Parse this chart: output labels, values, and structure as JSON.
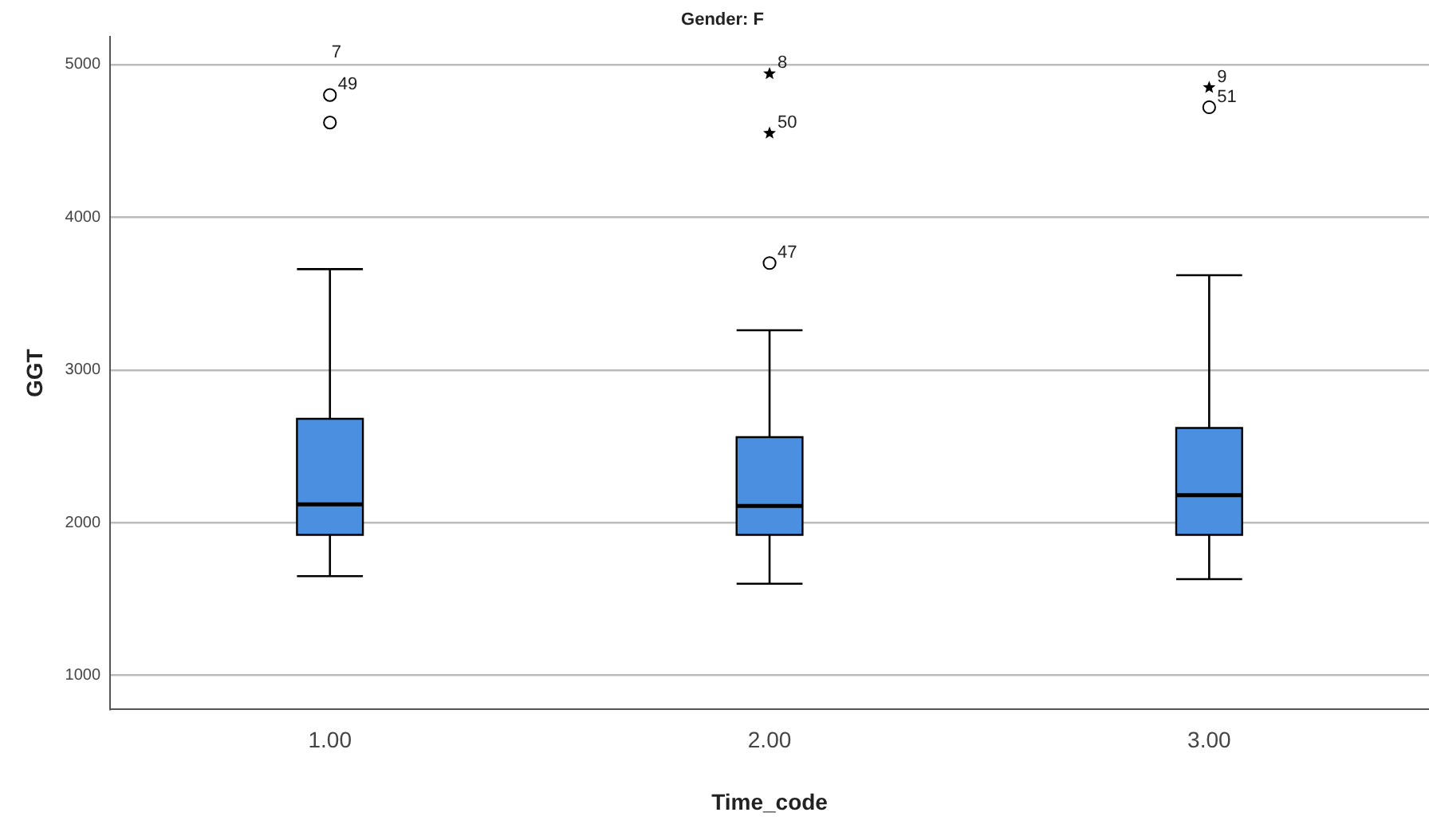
{
  "chart_data": {
    "type": "box",
    "title": "Gender: F",
    "xlabel": "Time_code",
    "ylabel": "GGT",
    "categories": [
      "1.00",
      "2.00",
      "3.00"
    ],
    "color": "#4a8fe0",
    "boxes": [
      {
        "low": 1650,
        "q1": 1920,
        "median": 2120,
        "q3": 2680,
        "high": 3660
      },
      {
        "low": 1600,
        "q1": 1920,
        "median": 2110,
        "q3": 2560,
        "high": 3260
      },
      {
        "low": 1630,
        "q1": 1920,
        "median": 2180,
        "q3": 2620,
        "high": 3620
      }
    ],
    "series": [
      {
        "type": "scatter",
        "color": "#000000",
        "x": [
          "1.00",
          "1.00",
          "2.00",
          "2.00",
          "2.00",
          "3.00",
          "3.00"
        ],
        "values": [
          4800,
          4620,
          4940,
          4550,
          3700,
          4850,
          4720
        ]
      }
    ],
    "ylim": [
      780,
      5180
    ],
    "yticks": [
      1000,
      2000,
      3000,
      4000,
      5000
    ],
    "grid": "y",
    "legend": false,
    "annotations": [
      {
        "text": "49",
        "x": "1.00",
        "y": 4800
      },
      {
        "text": "7",
        "x": "1.00",
        "y": 4800
      },
      {
        "text": "8",
        "x": "2.00",
        "y": 4940
      },
      {
        "text": "50",
        "x": "2.00",
        "y": 4550
      },
      {
        "text": "47",
        "x": "2.00",
        "y": 3700
      },
      {
        "text": "9",
        "x": "3.00",
        "y": 4850
      },
      {
        "text": "51",
        "x": "3.00",
        "y": 4720
      }
    ]
  }
}
